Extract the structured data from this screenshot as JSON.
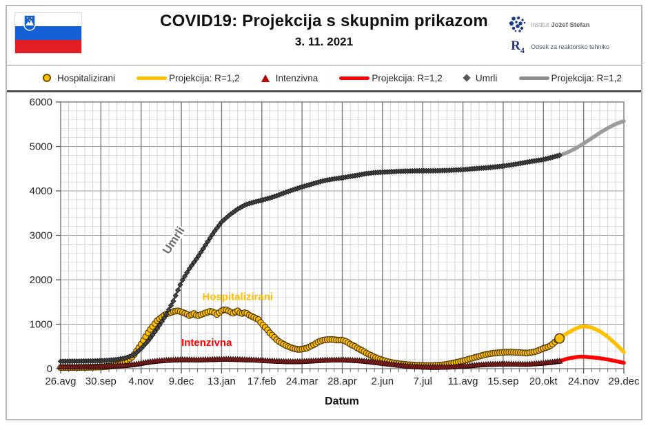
{
  "header": {
    "title": "COVID19: Projekcija s skupnim prikazom",
    "date": "3. 11. 2021",
    "flag_name": "slovenia-flag",
    "logo": {
      "line1_light": "Institut",
      "line1_bold": "Jožef Stefan",
      "monogram": "R4",
      "line2": "Odsek za reaktorsko tehniko",
      "brand_color": "#1b3c8c"
    }
  },
  "legend": [
    {
      "label": "Hospitalizirani",
      "marker": "circle",
      "color": "#ffc000"
    },
    {
      "label": "Projekcija: R=1,2",
      "marker": "line",
      "color": "#ffc000"
    },
    {
      "label": "Intenzivna",
      "marker": "triangle",
      "color": "#c00000"
    },
    {
      "label": "Projekcija: R=1,2",
      "marker": "line",
      "color": "#ff0000"
    },
    {
      "label": "Umrli",
      "marker": "diamond",
      "color": "#595959"
    },
    {
      "label": "Projekcija: R=1,2",
      "marker": "line",
      "color": "#8c8c8c"
    }
  ],
  "chart_data": {
    "type": "line",
    "title": "COVID19: Projekcija s skupnim prikazom",
    "xlabel": "Datum",
    "ylabel": "",
    "ylim": [
      0,
      6000
    ],
    "y_ticks": [
      0,
      1000,
      2000,
      3000,
      4000,
      5000,
      6000
    ],
    "y_minor_step": 200,
    "x_total_days": 490,
    "x_minor_step_days": 7,
    "x_tick_days": [
      0,
      35,
      70,
      105,
      140,
      175,
      210,
      245,
      280,
      315,
      350,
      385,
      420,
      455,
      490
    ],
    "x_tick_labels": [
      "26.avg",
      "30.sep",
      "4.nov",
      "9.dec",
      "13.jan",
      "17.feb",
      "24.mar",
      "28.apr",
      "2.jun",
      "7.jul",
      "11.avg",
      "15.sep",
      "20.okt",
      "24.nov",
      "29.dec"
    ],
    "grid": true,
    "legend_position": "top",
    "series": [
      {
        "name": "Projekcija Umrli R=1,2",
        "style": "line",
        "color": "#9c9c9c",
        "width": 5.5,
        "points": [
          [
            434,
            4800
          ],
          [
            441,
            4865
          ],
          [
            448,
            4955
          ],
          [
            455,
            5065
          ],
          [
            462,
            5185
          ],
          [
            469,
            5305
          ],
          [
            476,
            5415
          ],
          [
            483,
            5505
          ],
          [
            490,
            5570
          ]
        ]
      },
      {
        "name": "Projekcija Hospitalizirani R=1,2",
        "style": "line",
        "color": "#ffc000",
        "width": 5.5,
        "points": [
          [
            434,
            680
          ],
          [
            441,
            805
          ],
          [
            448,
            900
          ],
          [
            452,
            940
          ],
          [
            455,
            950
          ],
          [
            458,
            945
          ],
          [
            462,
            925
          ],
          [
            469,
            845
          ],
          [
            476,
            715
          ],
          [
            483,
            555
          ],
          [
            490,
            375
          ]
        ]
      },
      {
        "name": "Projekcija Intenzivna R=1,2",
        "style": "line",
        "color": "#ff0000",
        "width": 5.5,
        "points": [
          [
            434,
            170
          ],
          [
            441,
            226
          ],
          [
            448,
            260
          ],
          [
            452,
            270
          ],
          [
            455,
            268
          ],
          [
            462,
            256
          ],
          [
            469,
            236
          ],
          [
            476,
            206
          ],
          [
            483,
            170
          ],
          [
            490,
            132
          ]
        ]
      },
      {
        "name": "Hospitalizirani",
        "style": "markers",
        "marker": "circle",
        "color": "#ffc000",
        "stroke": "#453000",
        "end_big": true,
        "points": [
          [
            0,
            25
          ],
          [
            7,
            25
          ],
          [
            14,
            26
          ],
          [
            21,
            28
          ],
          [
            28,
            32
          ],
          [
            35,
            38
          ],
          [
            42,
            52
          ],
          [
            49,
            80
          ],
          [
            56,
            140
          ],
          [
            63,
            280
          ],
          [
            70,
            550
          ],
          [
            77,
            850
          ],
          [
            84,
            1080
          ],
          [
            91,
            1220
          ],
          [
            98,
            1285
          ],
          [
            102,
            1300
          ],
          [
            105,
            1280
          ],
          [
            109,
            1235
          ],
          [
            112,
            1195
          ],
          [
            116,
            1240
          ],
          [
            119,
            1185
          ],
          [
            123,
            1225
          ],
          [
            126,
            1255
          ],
          [
            130,
            1290
          ],
          [
            133,
            1275
          ],
          [
            136,
            1220
          ],
          [
            140,
            1300
          ],
          [
            143,
            1335
          ],
          [
            147,
            1285
          ],
          [
            150,
            1250
          ],
          [
            154,
            1300
          ],
          [
            157,
            1235
          ],
          [
            161,
            1265
          ],
          [
            164,
            1205
          ],
          [
            168,
            1155
          ],
          [
            172,
            1105
          ],
          [
            175,
            1005
          ],
          [
            179,
            905
          ],
          [
            182,
            805
          ],
          [
            186,
            705
          ],
          [
            189,
            625
          ],
          [
            193,
            565
          ],
          [
            196,
            520
          ],
          [
            200,
            480
          ],
          [
            203,
            450
          ],
          [
            207,
            432
          ],
          [
            210,
            440
          ],
          [
            214,
            462
          ],
          [
            217,
            500
          ],
          [
            221,
            550
          ],
          [
            224,
            600
          ],
          [
            228,
            638
          ],
          [
            231,
            652
          ],
          [
            235,
            660
          ],
          [
            238,
            652
          ],
          [
            241,
            642
          ],
          [
            245,
            645
          ],
          [
            249,
            605
          ],
          [
            252,
            552
          ],
          [
            256,
            500
          ],
          [
            259,
            450
          ],
          [
            263,
            400
          ],
          [
            266,
            350
          ],
          [
            270,
            300
          ],
          [
            273,
            258
          ],
          [
            277,
            220
          ],
          [
            280,
            192
          ],
          [
            284,
            162
          ],
          [
            287,
            142
          ],
          [
            294,
            112
          ],
          [
            301,
            92
          ],
          [
            308,
            80
          ],
          [
            315,
            72
          ],
          [
            322,
            70
          ],
          [
            329,
            78
          ],
          [
            336,
            98
          ],
          [
            343,
            135
          ],
          [
            350,
            175
          ],
          [
            357,
            228
          ],
          [
            364,
            278
          ],
          [
            371,
            328
          ],
          [
            378,
            352
          ],
          [
            385,
            368
          ],
          [
            392,
            372
          ],
          [
            399,
            362
          ],
          [
            406,
            352
          ],
          [
            413,
            382
          ],
          [
            420,
            455
          ],
          [
            424,
            490
          ],
          [
            427,
            530
          ],
          [
            430,
            600
          ],
          [
            434,
            680
          ]
        ]
      },
      {
        "name": "Umrli",
        "style": "markers",
        "marker": "diamond",
        "color": "#474747",
        "stroke": "#141414",
        "points": [
          [
            0,
            165
          ],
          [
            7,
            167
          ],
          [
            14,
            168
          ],
          [
            21,
            170
          ],
          [
            28,
            173
          ],
          [
            35,
            178
          ],
          [
            42,
            188
          ],
          [
            49,
            205
          ],
          [
            56,
            235
          ],
          [
            63,
            300
          ],
          [
            70,
            450
          ],
          [
            77,
            650
          ],
          [
            84,
            900
          ],
          [
            91,
            1180
          ],
          [
            98,
            1520
          ],
          [
            105,
            1950
          ],
          [
            112,
            2250
          ],
          [
            119,
            2500
          ],
          [
            126,
            2780
          ],
          [
            133,
            3060
          ],
          [
            140,
            3300
          ],
          [
            147,
            3460
          ],
          [
            154,
            3590
          ],
          [
            161,
            3690
          ],
          [
            168,
            3745
          ],
          [
            175,
            3790
          ],
          [
            182,
            3840
          ],
          [
            189,
            3900
          ],
          [
            196,
            3970
          ],
          [
            203,
            4030
          ],
          [
            210,
            4090
          ],
          [
            217,
            4140
          ],
          [
            224,
            4195
          ],
          [
            231,
            4240
          ],
          [
            238,
            4270
          ],
          [
            245,
            4295
          ],
          [
            252,
            4325
          ],
          [
            259,
            4355
          ],
          [
            266,
            4390
          ],
          [
            273,
            4410
          ],
          [
            280,
            4420
          ],
          [
            287,
            4430
          ],
          [
            294,
            4440
          ],
          [
            301,
            4445
          ],
          [
            308,
            4450
          ],
          [
            315,
            4452
          ],
          [
            322,
            4452
          ],
          [
            329,
            4455
          ],
          [
            336,
            4460
          ],
          [
            343,
            4468
          ],
          [
            350,
            4478
          ],
          [
            357,
            4495
          ],
          [
            364,
            4508
          ],
          [
            371,
            4520
          ],
          [
            378,
            4538
          ],
          [
            385,
            4558
          ],
          [
            392,
            4585
          ],
          [
            399,
            4615
          ],
          [
            406,
            4648
          ],
          [
            413,
            4678
          ],
          [
            420,
            4705
          ],
          [
            427,
            4750
          ],
          [
            434,
            4800
          ]
        ]
      },
      {
        "name": "Intenzivna",
        "style": "markers",
        "marker": "triangle",
        "color": "#8c1f1f",
        "stroke": "#1a0000",
        "points": [
          [
            0,
            42
          ],
          [
            7,
            42
          ],
          [
            14,
            43
          ],
          [
            21,
            44
          ],
          [
            28,
            46
          ],
          [
            35,
            50
          ],
          [
            42,
            55
          ],
          [
            49,
            62
          ],
          [
            56,
            72
          ],
          [
            63,
            92
          ],
          [
            70,
            122
          ],
          [
            77,
            152
          ],
          [
            84,
            172
          ],
          [
            91,
            186
          ],
          [
            98,
            196
          ],
          [
            105,
            202
          ],
          [
            112,
            202
          ],
          [
            119,
            197
          ],
          [
            126,
            202
          ],
          [
            133,
            207
          ],
          [
            140,
            212
          ],
          [
            147,
            212
          ],
          [
            154,
            207
          ],
          [
            161,
            200
          ],
          [
            168,
            196
          ],
          [
            175,
            186
          ],
          [
            182,
            176
          ],
          [
            189,
            166
          ],
          [
            196,
            160
          ],
          [
            203,
            156
          ],
          [
            210,
            162
          ],
          [
            217,
            172
          ],
          [
            224,
            182
          ],
          [
            231,
            192
          ],
          [
            238,
            196
          ],
          [
            245,
            196
          ],
          [
            252,
            190
          ],
          [
            259,
            180
          ],
          [
            266,
            165
          ],
          [
            273,
            145
          ],
          [
            280,
            122
          ],
          [
            287,
            100
          ],
          [
            294,
            80
          ],
          [
            301,
            60
          ],
          [
            308,
            46
          ],
          [
            315,
            36
          ],
          [
            322,
            30
          ],
          [
            329,
            31
          ],
          [
            336,
            36
          ],
          [
            343,
            46
          ],
          [
            350,
            56
          ],
          [
            357,
            70
          ],
          [
            364,
            85
          ],
          [
            371,
            96
          ],
          [
            378,
            101
          ],
          [
            385,
            106
          ],
          [
            392,
            106
          ],
          [
            399,
            101
          ],
          [
            406,
            101
          ],
          [
            413,
            112
          ],
          [
            420,
            126
          ],
          [
            427,
            146
          ],
          [
            434,
            170
          ]
        ]
      }
    ],
    "annotations": [
      {
        "text": "Umrli",
        "color": "#6e6e6e",
        "x_day": 101,
        "y": 2840,
        "rotate": -57,
        "size": 17,
        "halo": true
      },
      {
        "text": "Hospitalizirani",
        "color": "#ffc000",
        "x_day": 154,
        "y": 1545,
        "rotate": 0,
        "size": 15,
        "halo": false
      },
      {
        "text": "Intenzivna",
        "color": "#ff0000",
        "x_day": 127,
        "y": 510,
        "rotate": 0,
        "size": 15,
        "halo": false
      }
    ]
  }
}
